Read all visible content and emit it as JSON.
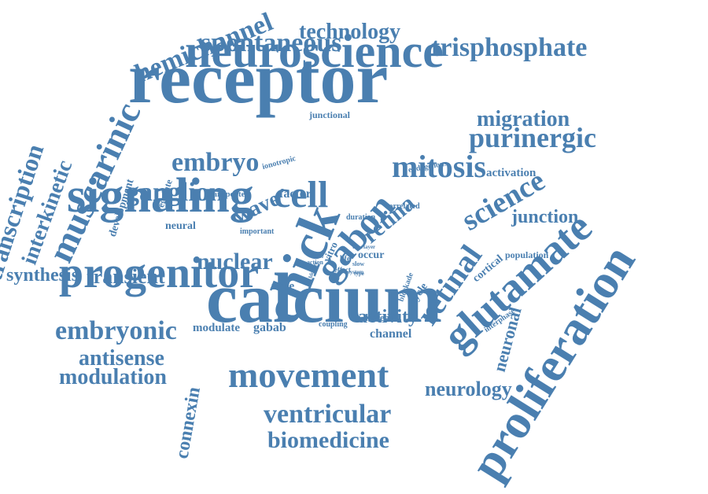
{
  "color": "#4a7fb0",
  "words": [
    {
      "text": "receptor"
    },
    {
      "text": "calcium"
    },
    {
      "text": "neuroscience"
    },
    {
      "text": "signaling"
    },
    {
      "text": "progenitor"
    },
    {
      "text": "proliferation"
    },
    {
      "text": "glutamate"
    },
    {
      "text": "chick"
    },
    {
      "text": "movement"
    },
    {
      "text": "muscarinic"
    },
    {
      "text": "hemichannel"
    },
    {
      "text": "spontaneous"
    },
    {
      "text": "technology"
    },
    {
      "text": "trisphosphate"
    },
    {
      "text": "migration"
    },
    {
      "text": "purinergic"
    },
    {
      "text": "science"
    },
    {
      "text": "mitosis"
    },
    {
      "text": "embryo"
    },
    {
      "text": "ganglion"
    },
    {
      "text": "cell"
    },
    {
      "text": "wave"
    },
    {
      "text": "gabon"
    },
    {
      "text": "retina"
    },
    {
      "text": "retinal"
    },
    {
      "text": "junction"
    },
    {
      "text": "transcription"
    },
    {
      "text": "interkinetic"
    },
    {
      "text": "synthesis"
    },
    {
      "text": "transient"
    },
    {
      "text": "nuclear"
    },
    {
      "text": "embryonic"
    },
    {
      "text": "antisense"
    },
    {
      "text": "modulation"
    },
    {
      "text": "connexin"
    },
    {
      "text": "ventricular"
    },
    {
      "text": "biomedicine"
    },
    {
      "text": "neurology"
    },
    {
      "text": "neuronal"
    },
    {
      "text": "activity"
    },
    {
      "text": "channel"
    },
    {
      "text": "modulate"
    },
    {
      "text": "gabab"
    },
    {
      "text": "zone"
    },
    {
      "text": "development"
    },
    {
      "text": "regulate"
    },
    {
      "text": "factor"
    },
    {
      "text": "transporter"
    },
    {
      "text": "neural"
    },
    {
      "text": "important"
    },
    {
      "text": "ionotropic"
    },
    {
      "text": "junctional"
    },
    {
      "text": "endogenous"
    },
    {
      "text": "activation"
    },
    {
      "text": "correlated"
    },
    {
      "text": "duration"
    },
    {
      "text": "occur"
    },
    {
      "text": "cycle"
    },
    {
      "text": "cortical"
    },
    {
      "text": "population"
    },
    {
      "text": "interphase"
    },
    {
      "text": "whereas"
    },
    {
      "text": "coupling"
    },
    {
      "text": "blockade"
    },
    {
      "text": "vitro"
    },
    {
      "text": "life"
    },
    {
      "text": "effect"
    },
    {
      "text": "action"
    },
    {
      "text": "slow"
    },
    {
      "text": "system"
    },
    {
      "text": "time"
    },
    {
      "text": "layer"
    },
    {
      "text": "type"
    },
    {
      "text": "blocker"
    },
    {
      "text": "role"
    }
  ]
}
